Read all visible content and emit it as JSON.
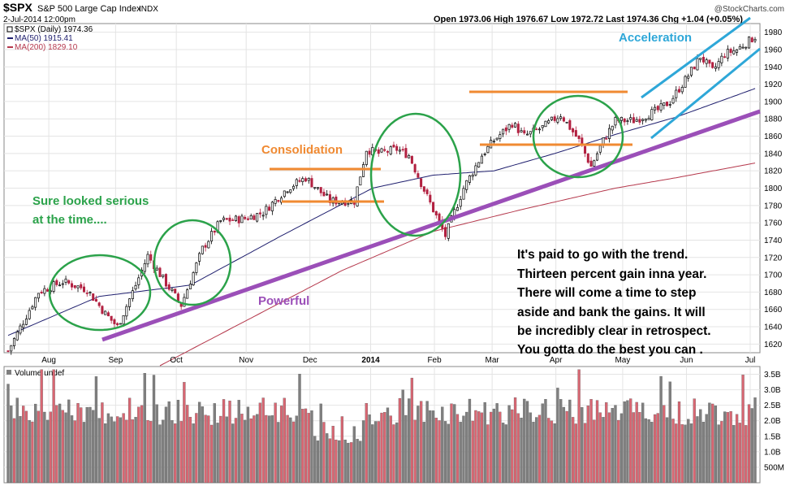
{
  "header": {
    "symbol": "$SPX",
    "name": "S&P 500 Large Cap Index",
    "exchange": "INDX",
    "date": "2-Jul-2014 12:00pm",
    "ohlc": "Open 1973.06  High 1976.67  Low 1972.72  Last 1974.36  Chg +1.04 (+0.05%)",
    "watermark": "@StockCharts.com"
  },
  "legend": {
    "price": "$SPX (Daily) 1974.36",
    "ma50": "MA(50) 1915.41",
    "ma200": "MA(200) 1829.10"
  },
  "colors": {
    "ma50": "#1f1f6e",
    "ma200": "#b5384c",
    "up_candle": "#000000",
    "down_candle": "#b22040",
    "trend": "#9b4fb8",
    "green_ann": "#2ba24a",
    "orange_ann": "#f08a32",
    "blue_ann": "#2ea7d8",
    "vol_up": "#7f7f7f",
    "vol_down": "#d96672"
  },
  "annotations": {
    "serious_line1": "Sure looked serious",
    "serious_line2": "at the time....",
    "consolidation": "Consolidation",
    "powerful": "Powerful",
    "acceleration": "Acceleration",
    "trend_text": [
      "It's paid to go with the trend.",
      "Thirteen percent gain inna year.",
      "There will come a time to step",
      "aside and bank the gains. It will",
      "be incredibly clear in retrospect.",
      "You gotta do the best you can ."
    ]
  },
  "volume_panel": {
    "label": "Volume undef",
    "ticks": [
      "3.5B",
      "3.0B",
      "2.5B",
      "2.0B",
      "1.5B",
      "1.0B",
      "500M"
    ]
  },
  "chart_data": {
    "type": "candlestick",
    "title": "$SPX S&P 500 Large Cap Index",
    "y_range": [
      1610,
      1990
    ],
    "y_ticks": [
      1620,
      1640,
      1660,
      1680,
      1700,
      1720,
      1740,
      1760,
      1780,
      1800,
      1820,
      1840,
      1860,
      1880,
      1900,
      1920,
      1940,
      1960,
      1980
    ],
    "x_ticks": [
      "Aug",
      "Sep",
      "Oct",
      "Nov",
      "Dec",
      "2014",
      "Feb",
      "Mar",
      "Apr",
      "May",
      "Jun",
      "Jul"
    ],
    "session_count": 246,
    "x_tick_sessions": [
      15,
      37,
      57,
      80,
      101,
      121,
      142,
      161,
      182,
      204,
      225,
      246
    ],
    "close_anchors": [
      [
        0,
        1612
      ],
      [
        10,
        1680
      ],
      [
        18,
        1692
      ],
      [
        26,
        1683
      ],
      [
        32,
        1655
      ],
      [
        36,
        1640
      ],
      [
        42,
        1688
      ],
      [
        46,
        1722
      ],
      [
        52,
        1690
      ],
      [
        57,
        1665
      ],
      [
        64,
        1730
      ],
      [
        70,
        1762
      ],
      [
        78,
        1765
      ],
      [
        84,
        1772
      ],
      [
        92,
        1800
      ],
      [
        98,
        1812
      ],
      [
        106,
        1785
      ],
      [
        114,
        1785
      ],
      [
        118,
        1845
      ],
      [
        122,
        1840
      ],
      [
        128,
        1845
      ],
      [
        132,
        1838
      ],
      [
        138,
        1790
      ],
      [
        144,
        1745
      ],
      [
        150,
        1800
      ],
      [
        156,
        1838
      ],
      [
        160,
        1855
      ],
      [
        166,
        1875
      ],
      [
        170,
        1860
      ],
      [
        176,
        1870
      ],
      [
        182,
        1885
      ],
      [
        188,
        1855
      ],
      [
        192,
        1825
      ],
      [
        196,
        1855
      ],
      [
        200,
        1878
      ],
      [
        206,
        1878
      ],
      [
        214,
        1890
      ],
      [
        218,
        1900
      ],
      [
        224,
        1930
      ],
      [
        228,
        1952
      ],
      [
        232,
        1935
      ],
      [
        236,
        1955
      ],
      [
        240,
        1960
      ],
      [
        246,
        1975
      ]
    ],
    "ma50_anchors": [
      [
        0,
        1630
      ],
      [
        30,
        1675
      ],
      [
        60,
        1688
      ],
      [
        90,
        1745
      ],
      [
        120,
        1800
      ],
      [
        140,
        1815
      ],
      [
        160,
        1820
      ],
      [
        180,
        1840
      ],
      [
        200,
        1862
      ],
      [
        220,
        1882
      ],
      [
        246,
        1915
      ]
    ],
    "ma200_anchors": [
      [
        50,
        1595
      ],
      [
        80,
        1650
      ],
      [
        110,
        1705
      ],
      [
        140,
        1750
      ],
      [
        170,
        1776
      ],
      [
        200,
        1800
      ],
      [
        220,
        1812
      ],
      [
        246,
        1829
      ]
    ],
    "volume_ylim_billions": [
      0,
      3.75
    ],
    "volume_base_billions": 2.3
  }
}
